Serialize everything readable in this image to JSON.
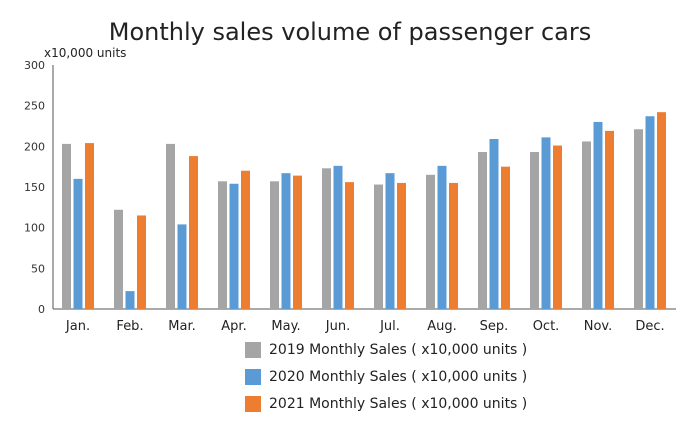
{
  "chart_data": {
    "type": "bar",
    "title": "Monthly sales volume of passenger cars",
    "ylabel": "x10,000 units",
    "ylim": [
      0,
      300
    ],
    "yticks": [
      0,
      50,
      100,
      150,
      200,
      250,
      300
    ],
    "grid": false,
    "legend_position": "bottom",
    "categories": [
      "Jan.",
      "Feb.",
      "Mar.",
      "Apr.",
      "May.",
      "Jun.",
      "Jul.",
      "Aug.",
      "Sep.",
      "Oct.",
      "Nov.",
      "Dec."
    ],
    "series": [
      {
        "name": "2019 Monthly Sales ( x10,000 units )",
        "color": "#a5a5a5",
        "values": [
          203,
          122,
          203,
          157,
          157,
          173,
          153,
          165,
          193,
          193,
          206,
          221
        ]
      },
      {
        "name": "2020 Monthly Sales ( x10,000 units )",
        "color": "#5b9bd5",
        "values": [
          160,
          22,
          104,
          154,
          167,
          176,
          167,
          176,
          209,
          211,
          230,
          237
        ]
      },
      {
        "name": "2021 Monthly Sales ( x10,000 units )",
        "color": "#ed7d31",
        "values": [
          204,
          115,
          188,
          170,
          164,
          156,
          155,
          155,
          175,
          201,
          219,
          242
        ]
      }
    ]
  }
}
